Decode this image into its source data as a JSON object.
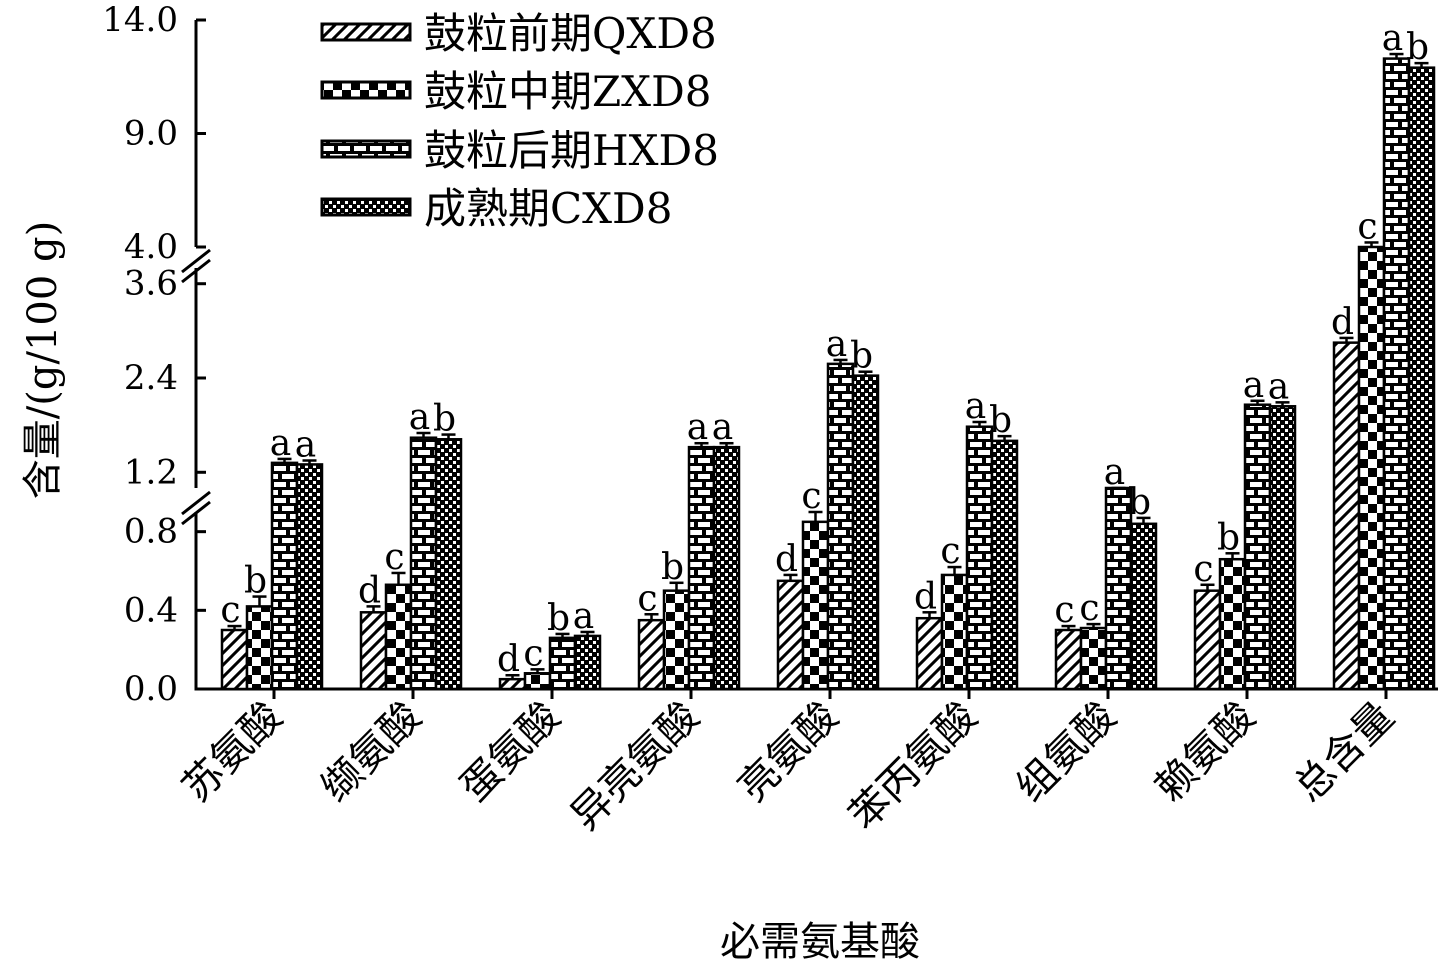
{
  "chart_data": {
    "type": "bar",
    "xlabel": "必需氨基酸",
    "ylabel": "含量/(g/100 g)",
    "y_segments": [
      {
        "range": [
          0.0,
          0.9
        ],
        "ticks": [
          "0.0",
          "0.4",
          "0.8"
        ]
      },
      {
        "range": [
          1.0,
          3.8
        ],
        "ticks": [
          "1.2",
          "2.4",
          "3.6"
        ]
      },
      {
        "range": [
          4.0,
          14.0
        ],
        "ticks": [
          "4.0",
          "9.0",
          "14.0"
        ]
      }
    ],
    "y_axis_breaks": true,
    "grid": false,
    "legend_position": "top-left",
    "categories": [
      "苏氨酸",
      "缬氨酸",
      "蛋氨酸",
      "异亮氨酸",
      "亮氨酸",
      "苯丙氨酸",
      "组氨酸",
      "赖氨酸",
      "总含量"
    ],
    "series": [
      {
        "name": "鼓粒前期QXD8",
        "pattern": "diagonal-hatch",
        "values": [
          0.3,
          0.39,
          0.05,
          0.35,
          0.55,
          0.36,
          0.3,
          0.5,
          2.85
        ],
        "errors": [
          0.02,
          0.03,
          0.02,
          0.03,
          0.03,
          0.03,
          0.02,
          0.03,
          0.06
        ],
        "labels": [
          "c",
          "d",
          "d",
          "c",
          "d",
          "d",
          "c",
          "c",
          "d"
        ]
      },
      {
        "name": "鼓粒中期ZXD8",
        "pattern": "checker",
        "values": [
          0.42,
          0.53,
          0.08,
          0.5,
          0.85,
          0.58,
          0.31,
          0.66,
          3.95
        ],
        "errors": [
          0.05,
          0.06,
          0.02,
          0.04,
          0.05,
          0.04,
          0.02,
          0.03,
          0.25
        ],
        "labels": [
          "b",
          "c",
          "c",
          "b",
          "c",
          "c",
          "c",
          "b",
          "c"
        ]
      },
      {
        "name": "鼓粒后期HXD8",
        "pattern": "brick",
        "values": [
          1.32,
          1.64,
          0.26,
          1.52,
          2.58,
          1.78,
          0.93,
          2.06,
          12.3
        ],
        "errors": [
          0.05,
          0.06,
          0.02,
          0.05,
          0.05,
          0.06,
          0.03,
          0.05,
          0.2
        ],
        "labels": [
          "a",
          "a",
          "b",
          "a",
          "a",
          "a",
          "a",
          "a",
          "a"
        ]
      },
      {
        "name": "成熟期CXD8",
        "pattern": "dense-dots",
        "values": [
          1.3,
          1.62,
          0.27,
          1.52,
          2.43,
          1.6,
          0.84,
          2.04,
          11.9
        ],
        "errors": [
          0.05,
          0.06,
          0.02,
          0.05,
          0.05,
          0.06,
          0.03,
          0.05,
          0.2
        ],
        "labels": [
          "a",
          "b",
          "a",
          "a",
          "b",
          "b",
          "b",
          "a",
          "b"
        ]
      }
    ]
  }
}
